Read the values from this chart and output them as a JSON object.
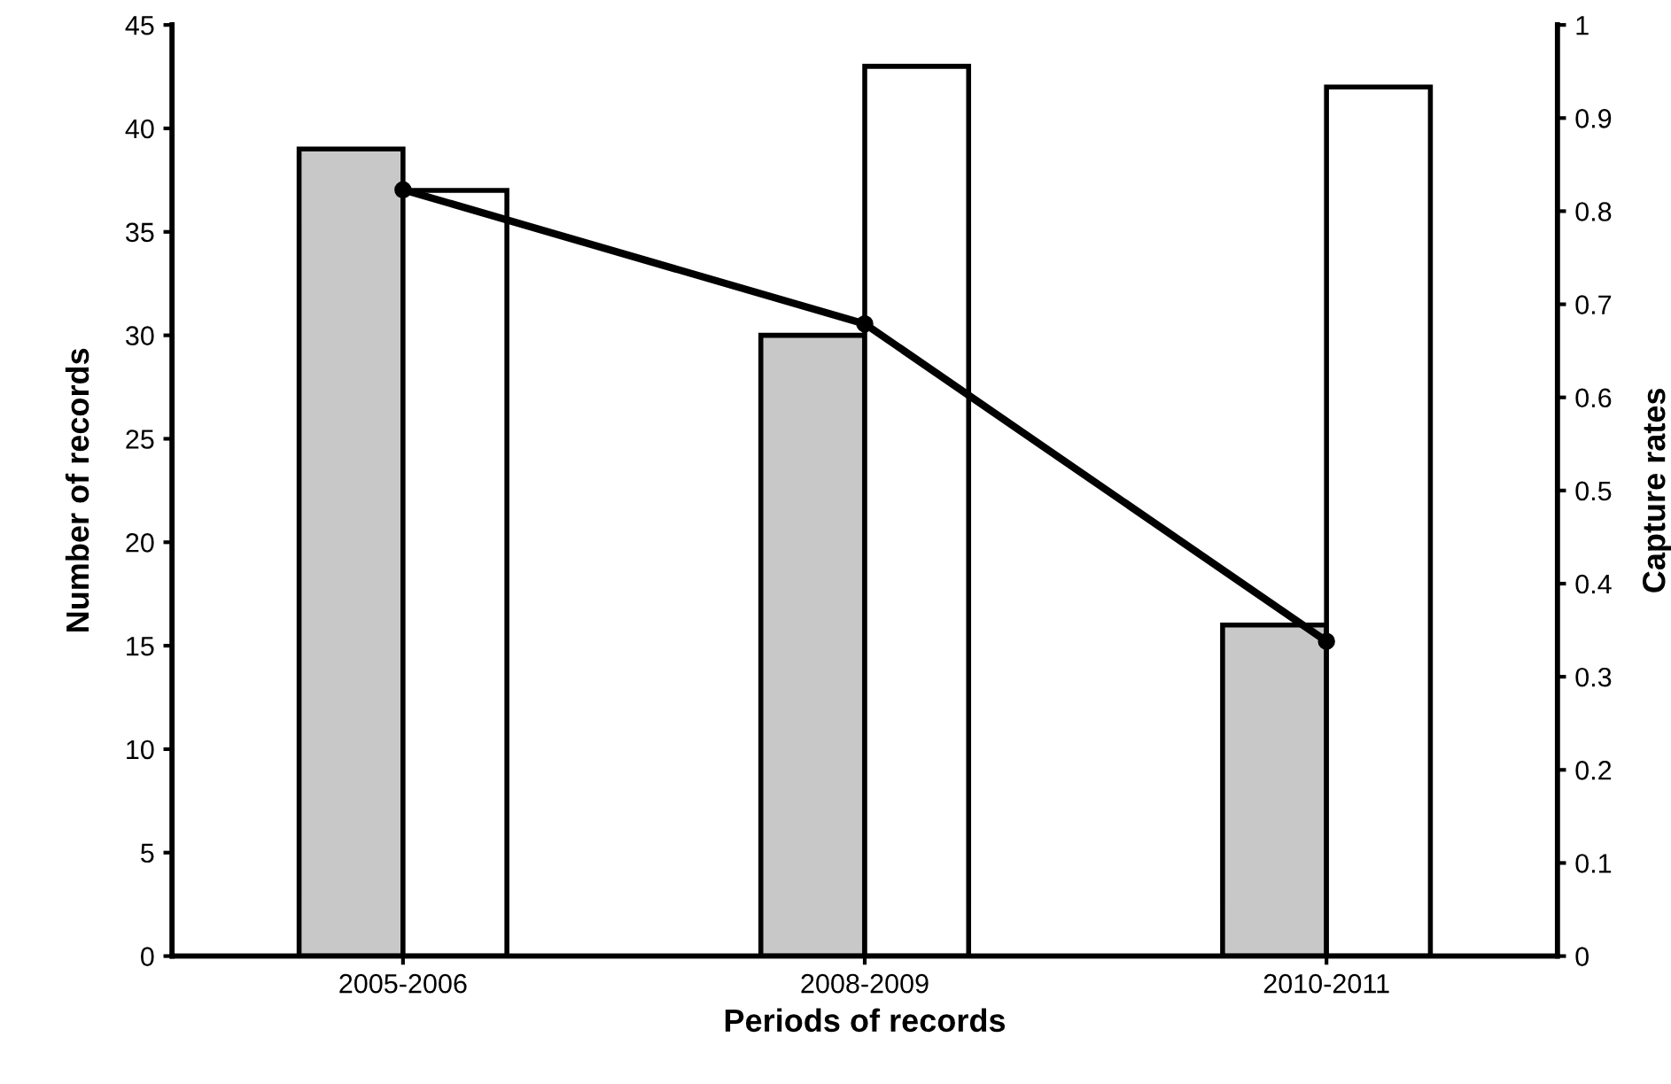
{
  "chart_data": {
    "type": "bar",
    "xlabel": "Periods of records",
    "ylabel": "Number of records",
    "y2label": "Capture rates",
    "categories": [
      "2005-2006",
      "2008-2009",
      "2010-2011"
    ],
    "series": [
      {
        "color": "#c8c8c8",
        "values": [
          39,
          30,
          16
        ]
      },
      {
        "color": "#ffffff",
        "values": [
          37,
          43,
          42
        ]
      },
      {
        "type": "line",
        "color": "#000000",
        "axis": "y2",
        "marker": "circle",
        "line_style": "solid",
        "values": [
          0.823,
          0.679,
          0.338
        ]
      }
    ],
    "ylim": [
      0,
      45
    ],
    "yticks": [
      0,
      5,
      10,
      15,
      20,
      25,
      30,
      35,
      40,
      45
    ],
    "y2lim": [
      0,
      1
    ],
    "y2ticks": [
      0,
      0.1,
      0.2,
      0.3,
      0.4,
      0.5,
      0.6,
      0.7,
      0.8,
      0.9,
      1
    ],
    "grid": false
  }
}
